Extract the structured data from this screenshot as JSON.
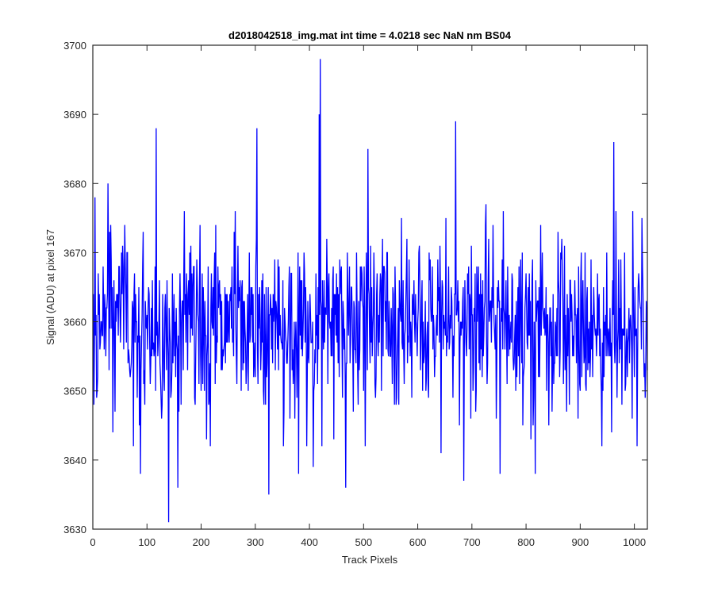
{
  "chart_data": {
    "type": "line",
    "title": "d2018042518_img.mat int time = 4.0218 sec  NaN nm BS04",
    "xlabel": "Track Pixels",
    "ylabel": "Signal (ADU) at pixel 167",
    "xlim": [
      0,
      1024
    ],
    "ylim": [
      3630,
      3700
    ],
    "x_ticks": [
      0,
      100,
      200,
      300,
      400,
      500,
      600,
      700,
      800,
      900,
      1000
    ],
    "y_ticks": [
      3630,
      3640,
      3650,
      3660,
      3670,
      3680,
      3690,
      3700
    ],
    "grid": false,
    "series": [
      {
        "color": "#0000ff",
        "x_start": 1,
        "x_step": 1,
        "count": 1024,
        "mean": 3660,
        "noise_amplitude": 6.5,
        "extremes": [
          {
            "x": 2,
            "y": 3648
          },
          {
            "x": 4,
            "y": 3678
          },
          {
            "x": 8,
            "y": 3650
          },
          {
            "x": 28,
            "y": 3680
          },
          {
            "x": 75,
            "y": 3642
          },
          {
            "x": 88,
            "y": 3638
          },
          {
            "x": 117,
            "y": 3688
          },
          {
            "x": 140,
            "y": 3631
          },
          {
            "x": 157,
            "y": 3636
          },
          {
            "x": 263,
            "y": 3676
          },
          {
            "x": 303,
            "y": 3688
          },
          {
            "x": 325,
            "y": 3635
          },
          {
            "x": 380,
            "y": 3638
          },
          {
            "x": 407,
            "y": 3639
          },
          {
            "x": 418,
            "y": 3690
          },
          {
            "x": 420,
            "y": 3698
          },
          {
            "x": 467,
            "y": 3636
          },
          {
            "x": 508,
            "y": 3685
          },
          {
            "x": 643,
            "y": 3641
          },
          {
            "x": 670,
            "y": 3689
          },
          {
            "x": 685,
            "y": 3637
          },
          {
            "x": 752,
            "y": 3638
          },
          {
            "x": 817,
            "y": 3638
          },
          {
            "x": 962,
            "y": 3686
          },
          {
            "x": 997,
            "y": 3676
          },
          {
            "x": 1005,
            "y": 3642
          }
        ]
      }
    ]
  }
}
